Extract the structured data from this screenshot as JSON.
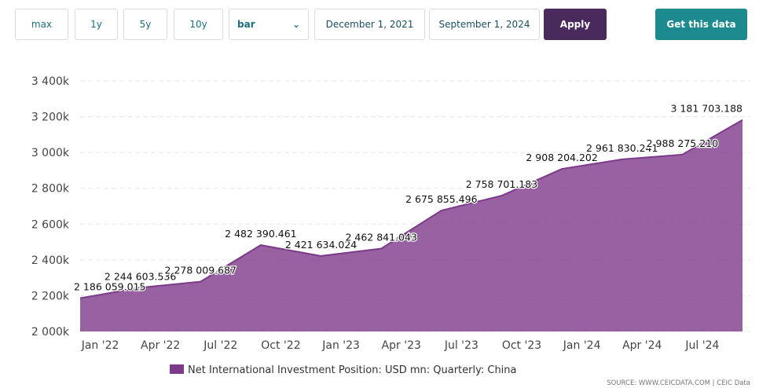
{
  "toolbar": {
    "ranges": [
      "max",
      "1y",
      "5y",
      "10y"
    ],
    "chart_type": "bar",
    "date_from": "December 1, 2021",
    "date_to": "September 1, 2024",
    "apply": "Apply",
    "get_data": "Get this data"
  },
  "chart_data": {
    "type": "area",
    "x": [
      "2021-12",
      "2022-03",
      "2022-06",
      "2022-09",
      "2022-12",
      "2023-03",
      "2023-06",
      "2023-09",
      "2023-12",
      "2024-03",
      "2024-06",
      "2024-09"
    ],
    "series": [
      {
        "name": "Net International Investment Position: USD mn: Quarterly: China",
        "color": "#7e3a8a",
        "values": [
          2186059.015,
          2244603.536,
          2278009.687,
          2482390.461,
          2421634.024,
          2462841.043,
          2675855.496,
          2758701.183,
          2908204.202,
          2961830.241,
          2988275.21,
          3181703.188
        ],
        "value_labels": [
          "2 186 059.015",
          "2 244 603.536",
          "2 278 009.687",
          "2 482 390.461",
          "2 421 634.024",
          "2 462 841.043",
          "2 675 855.496",
          "2 758 701.183",
          "2 908 204.202",
          "2 961 830.241",
          "2 988 275.210",
          "3 181 703.188"
        ]
      }
    ],
    "xlim": [
      "2021-12",
      "2024-09"
    ],
    "xticks": [
      {
        "value": "2022-01",
        "label": "Jan '22"
      },
      {
        "value": "2022-04",
        "label": "Apr '22"
      },
      {
        "value": "2022-07",
        "label": "Jul '22"
      },
      {
        "value": "2022-10",
        "label": "Oct '22"
      },
      {
        "value": "2023-01",
        "label": "Jan '23"
      },
      {
        "value": "2023-04",
        "label": "Apr '23"
      },
      {
        "value": "2023-07",
        "label": "Jul '23"
      },
      {
        "value": "2023-10",
        "label": "Oct '23"
      },
      {
        "value": "2024-01",
        "label": "Jan '24"
      },
      {
        "value": "2024-04",
        "label": "Apr '24"
      },
      {
        "value": "2024-07",
        "label": "Jul '24"
      }
    ],
    "ylim": [
      2000000,
      3400000
    ],
    "yticks": [
      {
        "value": 2000000,
        "label": "2 000k"
      },
      {
        "value": 2200000,
        "label": "2 200k"
      },
      {
        "value": 2400000,
        "label": "2 400k"
      },
      {
        "value": 2600000,
        "label": "2 600k"
      },
      {
        "value": 2800000,
        "label": "2 800k"
      },
      {
        "value": 3000000,
        "label": "3 000k"
      },
      {
        "value": 3200000,
        "label": "3 200k"
      },
      {
        "value": 3400000,
        "label": "3 400k"
      }
    ],
    "grid": true,
    "source": "SOURCE: WWW.CEICDATA.COM | CEIC Data"
  }
}
